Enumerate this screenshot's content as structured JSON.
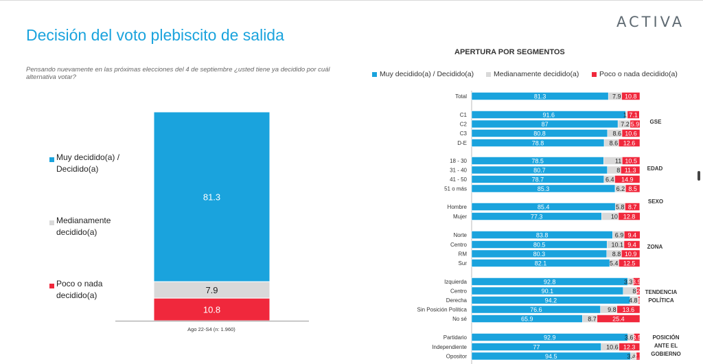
{
  "header": {
    "logo": "ACTIVA",
    "title": "Decisión del voto plebiscito de salida",
    "question": "Pensando nuevamente en las próximas elecciones del 4 de septiembre ¿usted tiene ya decidido por  cuál alternativa  votar?"
  },
  "colors": {
    "muy": "#1aa3dd",
    "medi": "#d9d9d9",
    "poco": "#f0283c"
  },
  "chart_data": [
    {
      "type": "bar",
      "stacked": true,
      "categories": [
        "Ago 22-S4 (n: 1.960)"
      ],
      "series": [
        {
          "name": "Muy decidido(a) / Decidido(a)",
          "values": [
            81.3
          ]
        },
        {
          "name": "Medianamente decidido(a)",
          "values": [
            7.9
          ]
        },
        {
          "name": "Poco o nada decidido(a)",
          "values": [
            10.8
          ]
        }
      ],
      "ylim": [
        0,
        100
      ],
      "legend_position": "left"
    },
    {
      "type": "bar",
      "orientation": "horizontal",
      "stacked": true,
      "title": "APERTURA POR SEGMENTOS",
      "legend_position": "top",
      "series_names": [
        "Muy decidido(a) / Decidido(a)",
        "Medianamente decidido(a)",
        "Poco o nada decidido(a)"
      ],
      "rows": [
        {
          "label": "Total",
          "values": [
            81.3,
            7.9,
            10.8
          ]
        },
        {
          "label": "C1",
          "values": [
            91.6,
            1,
            7.1
          ]
        },
        {
          "label": "C2",
          "values": [
            87,
            7.2,
            5.9
          ]
        },
        {
          "label": "C3",
          "values": [
            80.8,
            8.6,
            10.6
          ]
        },
        {
          "label": "D-E",
          "values": [
            78.8,
            8.6,
            12.6
          ]
        },
        {
          "label": "18 - 30",
          "values": [
            78.5,
            11,
            10.5
          ]
        },
        {
          "label": "31 - 40",
          "values": [
            80.7,
            8,
            11.3
          ]
        },
        {
          "label": "41 - 50",
          "values": [
            78.7,
            6.4,
            14.9
          ]
        },
        {
          "label": "51 o más",
          "values": [
            85.3,
            6.2,
            8.5
          ]
        },
        {
          "label": "Hombre",
          "values": [
            85.4,
            5.8,
            8.7
          ]
        },
        {
          "label": "Mujer",
          "values": [
            77.3,
            10,
            12.8
          ]
        },
        {
          "label": "Norte",
          "values": [
            83.8,
            6.9,
            9.4
          ]
        },
        {
          "label": "Centro",
          "values": [
            80.5,
            10.1,
            9.4
          ]
        },
        {
          "label": "RM",
          "values": [
            80.3,
            8.8,
            10.9
          ]
        },
        {
          "label": "Sur",
          "values": [
            82.1,
            5.4,
            12.5
          ]
        },
        {
          "label": "Izquierda",
          "values": [
            92.8,
            3.3,
            3.9
          ]
        },
        {
          "label": "Centro",
          "values": [
            90.1,
            8,
            2
          ]
        },
        {
          "label": "Derecha",
          "values": [
            94.2,
            4.8,
            1
          ]
        },
        {
          "label": "Sin Posición Política",
          "values": [
            76.6,
            9.8,
            13.6
          ]
        },
        {
          "label": "No sé",
          "values": [
            65.9,
            8.7,
            25.4
          ]
        },
        {
          "label": "Partidario",
          "values": [
            92.9,
            3.6,
            3.5
          ]
        },
        {
          "label": "Independiente",
          "values": [
            77,
            10.6,
            12.3
          ]
        },
        {
          "label": "Opositor",
          "values": [
            94.5,
            3.4,
            2.1
          ]
        }
      ],
      "groups": [
        "GSE",
        "EDAD",
        "SEXO",
        "ZONA",
        "TENDENCIA POLÍTICA",
        "POSICIÓN ANTE EL GOBIERNO"
      ]
    }
  ],
  "left_legend": [
    "Muy decidido(a) / Decidido(a)",
    "Medianamente decidido(a)",
    "Poco o nada decidido(a)"
  ]
}
